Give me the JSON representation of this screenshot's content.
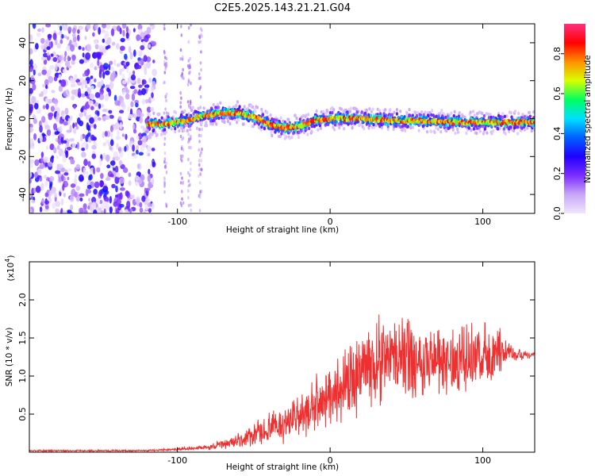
{
  "chart_data": [
    {
      "type": "heatmap",
      "title": "C2E5.2025.143.21.21.G04",
      "xlabel": "Height of straight line (km)",
      "ylabel": "Frequency (Hz)",
      "xlim": [
        -197,
        134
      ],
      "ylim": [
        -50,
        50
      ],
      "x_ticks": [
        -100,
        0,
        100
      ],
      "y_ticks": [
        -40,
        -20,
        0,
        20,
        40
      ],
      "colorbar": {
        "label": "Normalized spectral amplitude",
        "range": [
          0,
          0.95
        ],
        "ticks": [
          0.0,
          0.2,
          0.4,
          0.6,
          0.8
        ],
        "colors": [
          "#f0e6ff",
          "#c9a6f7",
          "#7b2cff",
          "#2000ff",
          "#0060ff",
          "#00e0ff",
          "#00ff60",
          "#d8ff00",
          "#ff9000",
          "#ff0000",
          "#ff3080"
        ]
      },
      "frequency_trace": {
        "x": [
          -120,
          -110,
          -100,
          -90,
          -80,
          -70,
          -60,
          -50,
          -40,
          -30,
          -20,
          -10,
          0,
          20,
          40,
          60,
          80,
          100,
          120,
          134
        ],
        "y": [
          -3,
          -3,
          -2,
          0,
          2,
          3,
          3,
          1,
          -3,
          -5,
          -4,
          -1,
          0,
          0,
          -1,
          -1,
          -2,
          -2,
          -2,
          -2
        ]
      },
      "noise_region": [
        -197,
        -115
      ]
    },
    {
      "type": "line",
      "xlabel": "Height of straight line (km)",
      "ylabel": "SNR (10 * v/v)",
      "exponent_label": "(x10",
      "exponent_power": "4",
      "exponent_close": ")",
      "xlim": [
        -197,
        134
      ],
      "ylim": [
        0,
        2.5
      ],
      "x_ticks": [
        -100,
        0,
        100
      ],
      "y_ticks": [
        0.5,
        1.0,
        1.5,
        2.0
      ],
      "series": [
        {
          "name": "SNR",
          "color": "#ee3030",
          "envelope_x": [
            -197,
            -120,
            -100,
            -80,
            -60,
            -50,
            -40,
            -30,
            -20,
            -10,
            0,
            10,
            20,
            30,
            40,
            50,
            60,
            70,
            80,
            90,
            100,
            110,
            120,
            134
          ],
          "envelope_mid": [
            0.02,
            0.02,
            0.04,
            0.06,
            0.15,
            0.22,
            0.3,
            0.38,
            0.45,
            0.6,
            0.75,
            0.9,
            1.05,
            1.2,
            1.25,
            1.25,
            1.22,
            1.2,
            1.2,
            1.2,
            1.25,
            1.3,
            1.3,
            1.28
          ],
          "envelope_amp": [
            0.01,
            0.01,
            0.02,
            0.03,
            0.1,
            0.15,
            0.2,
            0.25,
            0.3,
            0.35,
            0.4,
            0.45,
            0.5,
            0.6,
            0.55,
            0.5,
            0.5,
            0.45,
            0.45,
            0.45,
            0.4,
            0.3,
            0.1,
            0.05
          ]
        }
      ]
    }
  ]
}
